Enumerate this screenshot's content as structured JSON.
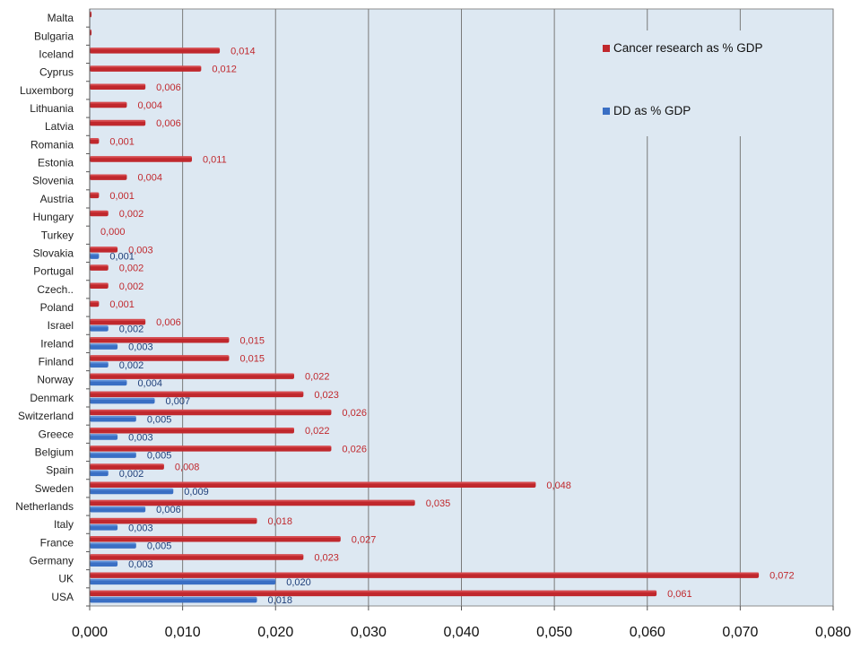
{
  "chart_data": {
    "type": "bar",
    "orientation": "horizontal",
    "categories": [
      "USA",
      "UK",
      "Germany",
      "France",
      "Italy",
      "Netherlands",
      "Sweden",
      "Spain",
      "Belgium",
      "Greece",
      "Switzerland",
      "Denmark",
      "Norway",
      "Finland",
      "Ireland",
      "Israel",
      "Poland",
      "Czech..",
      "Portugal",
      "Slovakia",
      "Turkey",
      "Hungary",
      "Austria",
      "Slovenia",
      "Estonia",
      "Romania",
      "Latvia",
      "Lithuania",
      "Luxemborg",
      "Cyprus",
      "Iceland",
      "Bulgaria",
      "Malta"
    ],
    "series": [
      {
        "name": "Cancer research as % GDP",
        "color": "#c0282d",
        "values": [
          0.061,
          0.072,
          0.023,
          0.027,
          0.018,
          0.035,
          0.048,
          0.008,
          0.026,
          0.022,
          0.026,
          0.023,
          0.022,
          0.015,
          0.015,
          0.006,
          0.001,
          0.002,
          0.002,
          0.003,
          0.0,
          0.002,
          0.001,
          0.004,
          0.011,
          0.001,
          0.006,
          0.004,
          0.006,
          0.012,
          0.014,
          0.0002,
          0.0002
        ],
        "labels": [
          "0,061",
          "0,072",
          "0,023",
          "0,027",
          "0,018",
          "0,035",
          "0,048",
          "0,008",
          "0,026",
          "0,022",
          "0,026",
          "0,023",
          "0,022",
          "0,015",
          "0,015",
          "0,006",
          "0,001",
          "0,002",
          "0,002",
          "0,003",
          "0,000",
          "0,002",
          "0,001",
          "0,004",
          "0,011",
          "0,001",
          "0,006",
          "0,004",
          "0,006",
          "0,012",
          "0,014",
          "",
          ""
        ]
      },
      {
        "name": "DD as % GDP",
        "color": "#3a6fc4",
        "values": [
          0.018,
          0.02,
          0.003,
          0.005,
          0.003,
          0.006,
          0.009,
          0.002,
          0.005,
          0.003,
          0.005,
          0.007,
          0.004,
          0.002,
          0.003,
          0.002,
          0,
          0,
          0,
          0.001,
          0,
          0,
          0,
          0,
          0,
          0,
          0,
          0,
          0,
          0,
          0,
          0,
          0
        ],
        "labels": [
          "0,018",
          "0,020",
          "0,003",
          "0,005",
          "0,003",
          "0,006",
          "0,009",
          "0,002",
          "0,005",
          "0,003",
          "0,005",
          "0,007",
          "0,004",
          "0,002",
          "0,003",
          "0,002",
          "",
          "",
          "",
          "0,001",
          "",
          "",
          "",
          "",
          "",
          "",
          "",
          "",
          "",
          "",
          "",
          "",
          ""
        ]
      }
    ],
    "xlim": [
      0,
      0.08
    ],
    "x_ticks": [
      "0,000",
      "0,010",
      "0,020",
      "0,030",
      "0,040",
      "0,050",
      "0,060",
      "0,070",
      "0,080"
    ],
    "grid": true,
    "legend_position": "top-right",
    "background": "#dde8f2"
  }
}
